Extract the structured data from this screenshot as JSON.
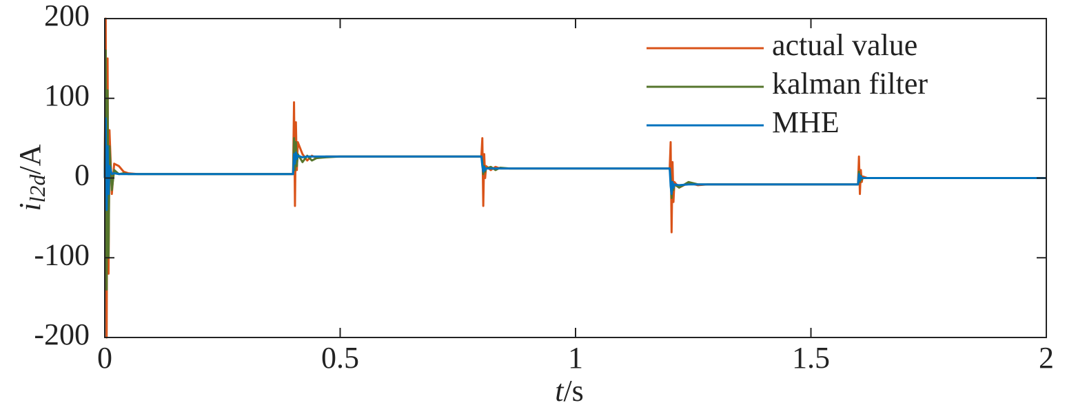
{
  "chart_data": {
    "type": "line",
    "x_label": "t",
    "x_label_unit": "/s",
    "y_label": "i",
    "y_label_sub": "l2d",
    "y_label_unit": "/A",
    "x": [
      0,
      0.002,
      0.004,
      0.006,
      0.008,
      0.01,
      0.015,
      0.02,
      0.03,
      0.04,
      0.05,
      0.07,
      0.1,
      0.4,
      0.402,
      0.404,
      0.406,
      0.408,
      0.41,
      0.42,
      0.43,
      0.44,
      0.45,
      0.47,
      0.5,
      0.8,
      0.802,
      0.804,
      0.806,
      0.808,
      0.81,
      0.82,
      0.83,
      0.84,
      0.86,
      0.9,
      1.2,
      1.202,
      1.204,
      1.206,
      1.208,
      1.21,
      1.22,
      1.24,
      1.26,
      1.28,
      1.3,
      1.6,
      1.602,
      1.604,
      1.606,
      1.608,
      1.61,
      1.62,
      1.65,
      2
    ],
    "series": [
      {
        "name": "actual value",
        "color": "#d95319",
        "values": [
          0,
          200,
          -200,
          150,
          -120,
          60,
          -20,
          18,
          15,
          8,
          6,
          5,
          5,
          5,
          95,
          -35,
          70,
          10,
          45,
          30,
          22,
          28,
          25,
          27,
          27,
          27,
          50,
          -35,
          30,
          0,
          15,
          10,
          14,
          12,
          12,
          12,
          12,
          45,
          -68,
          20,
          -30,
          -5,
          -12,
          -6,
          -9,
          -8,
          -8,
          -8,
          27,
          -20,
          10,
          -5,
          2,
          0,
          0,
          0
        ]
      },
      {
        "name": "kalman filter",
        "color": "#55752c",
        "values": [
          0,
          160,
          -140,
          110,
          -100,
          40,
          -15,
          10,
          5,
          6,
          5,
          5,
          5,
          5,
          50,
          10,
          45,
          15,
          30,
          20,
          28,
          22,
          25,
          26,
          27,
          27,
          20,
          5,
          15,
          8,
          12,
          14,
          10,
          13,
          12,
          12,
          12,
          0,
          -25,
          -5,
          -15,
          -8,
          -12,
          -5,
          -8,
          -8,
          -8,
          -8,
          8,
          -5,
          3,
          -2,
          0,
          0,
          0,
          0
        ]
      },
      {
        "name": "MHE",
        "color": "#0072bd",
        "values": [
          0,
          75,
          -40,
          40,
          -20,
          15,
          5,
          6,
          5,
          5,
          5,
          5,
          5,
          5,
          30,
          18,
          32,
          24,
          28,
          26,
          27,
          27,
          27,
          27,
          27,
          27,
          15,
          8,
          14,
          10,
          12,
          12,
          12,
          12,
          12,
          12,
          12,
          -10,
          -20,
          -5,
          -12,
          -8,
          -9,
          -8,
          -8,
          -8,
          -8,
          -8,
          5,
          -3,
          2,
          0,
          0,
          0,
          0,
          0
        ]
      }
    ],
    "xlim": [
      0,
      2
    ],
    "xticks": [
      0,
      0.5,
      1,
      1.5,
      2
    ],
    "ylim": [
      -200,
      200
    ],
    "yticks": [
      -200,
      -100,
      0,
      100,
      200
    ],
    "grid": false,
    "legend": "upper right"
  }
}
